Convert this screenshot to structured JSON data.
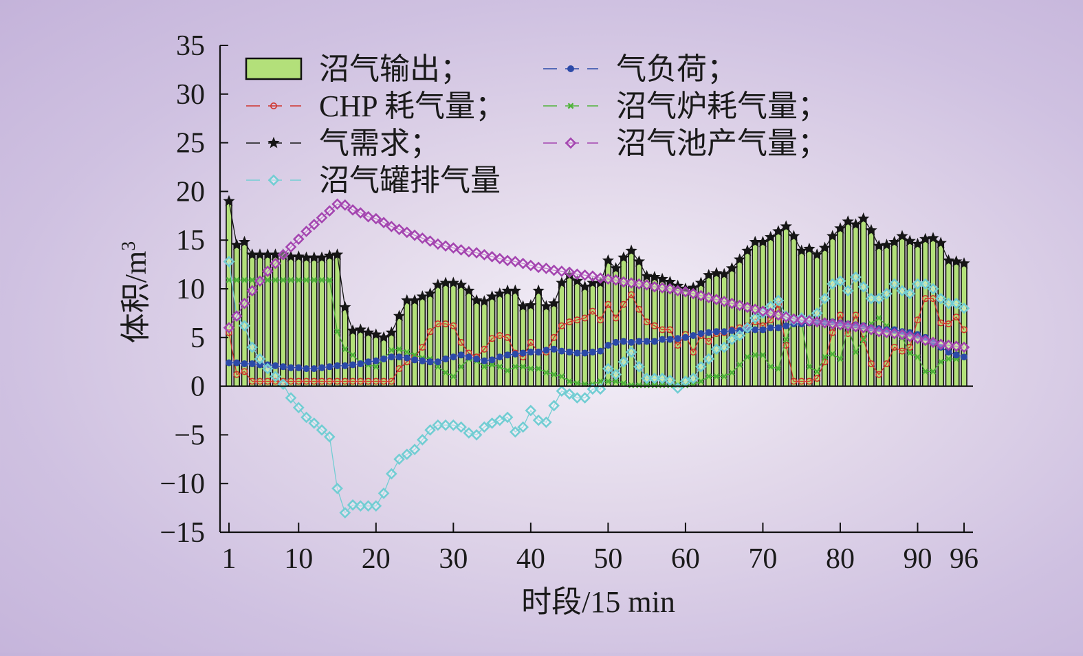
{
  "chart_data": {
    "type": "bar",
    "xlabel": "时段/15 min",
    "ylabel": "体积/m",
    "ylabel_sup": "3",
    "ylim": [
      -15,
      35
    ],
    "yticks": [
      -15,
      -10,
      -5,
      0,
      5,
      10,
      15,
      20,
      25,
      30,
      35
    ],
    "xlim": [
      1,
      96
    ],
    "xticks": [
      1,
      10,
      20,
      30,
      40,
      50,
      60,
      70,
      80,
      90,
      96
    ],
    "grid": false,
    "legend_position": "top-left, two columns",
    "x": [
      1,
      2,
      3,
      4,
      5,
      6,
      7,
      8,
      9,
      10,
      11,
      12,
      13,
      14,
      15,
      16,
      17,
      18,
      19,
      20,
      21,
      22,
      23,
      24,
      25,
      26,
      27,
      28,
      29,
      30,
      31,
      32,
      33,
      34,
      35,
      36,
      37,
      38,
      39,
      40,
      41,
      42,
      43,
      44,
      45,
      46,
      47,
      48,
      49,
      50,
      51,
      52,
      53,
      54,
      55,
      56,
      57,
      58,
      59,
      60,
      61,
      62,
      63,
      64,
      65,
      66,
      67,
      68,
      69,
      70,
      71,
      72,
      73,
      74,
      75,
      76,
      77,
      78,
      79,
      80,
      81,
      82,
      83,
      84,
      85,
      86,
      87,
      88,
      89,
      90,
      91,
      92,
      93,
      94,
      95,
      96
    ],
    "bar_series": {
      "name": "沼气输出；",
      "color": "#b3e07a",
      "values": [
        19,
        14.5,
        14.8,
        13.5,
        13.5,
        13.5,
        13.5,
        13.5,
        13.3,
        13.3,
        13.2,
        13.2,
        13.2,
        13.4,
        13.5,
        8.1,
        5.7,
        5.8,
        5.5,
        5.3,
        5,
        5.5,
        7.2,
        8.8,
        8.8,
        9.2,
        9.5,
        10.4,
        10.6,
        10.6,
        10.4,
        9.8,
        8.8,
        8.7,
        9.2,
        9.5,
        9.8,
        9.8,
        8.2,
        8.3,
        9.8,
        8.2,
        8.5,
        10.6,
        11.4,
        10.8,
        10.2,
        10.6,
        10.6,
        12.9,
        12.1,
        13.2,
        13.9,
        12.8,
        11.3,
        11.2,
        11.0,
        10.7,
        10.3,
        10.0,
        10.1,
        10.6,
        11.4,
        11.6,
        11.5,
        12.1,
        13.0,
        13.9,
        14.8,
        14.8,
        15.3,
        15.9,
        16.4,
        15.4,
        13.9,
        14.1,
        13.5,
        14.2,
        15.4,
        16.2,
        16.9,
        16.6,
        17.2,
        16.0,
        14.4,
        14.5,
        14.8,
        15.4,
        14.9,
        14.6,
        15.1,
        15.2,
        14.7,
        12.9,
        12.8,
        12.6
      ]
    },
    "series": [
      {
        "name": "CHP 耗气量；",
        "color": "#d0342c",
        "marker": "circle",
        "values": [
          5.5,
          1.2,
          1.5,
          0.5,
          0.5,
          0.5,
          0.5,
          0.5,
          0.5,
          0.5,
          0.5,
          0.5,
          0.5,
          0.5,
          0.5,
          0.5,
          0.5,
          0.5,
          0.5,
          0.5,
          0.5,
          0.5,
          1.8,
          2.5,
          3.0,
          4.0,
          5.6,
          6.4,
          6.4,
          6.2,
          4.5,
          3.4,
          3.0,
          3.8,
          4.9,
          5.2,
          5.0,
          3.4,
          3.0,
          4.5,
          3.5,
          3.5,
          5.0,
          6.2,
          6.6,
          6.8,
          7.0,
          7.7,
          6.8,
          8.4,
          7.0,
          8.4,
          9.4,
          7.9,
          6.6,
          6.2,
          5.8,
          5.8,
          4.2,
          5.3,
          3.5,
          5.2,
          4.6,
          5.4,
          5.5,
          5.8,
          6.0,
          6.2,
          6.6,
          6.2,
          6.8,
          8.4,
          4.2,
          0.5,
          0.5,
          0.5,
          0.8,
          2.5,
          5.5,
          7.3,
          5.4,
          7.3,
          4.8,
          2.3,
          1.2,
          2.3,
          4.0,
          3.6,
          4.0,
          6.8,
          9.0,
          9.0,
          6.5,
          6.4,
          7.1,
          5.8
        ]
      },
      {
        "name": "气需求；",
        "color": "#151515",
        "marker": "star",
        "values": [
          19,
          14.5,
          14.8,
          13.5,
          13.5,
          13.5,
          13.5,
          13.5,
          13.3,
          13.3,
          13.2,
          13.2,
          13.2,
          13.4,
          13.5,
          8.1,
          5.7,
          5.8,
          5.5,
          5.3,
          5,
          5.5,
          7.2,
          8.8,
          8.8,
          9.2,
          9.5,
          10.4,
          10.6,
          10.6,
          10.4,
          9.8,
          8.8,
          8.7,
          9.2,
          9.5,
          9.8,
          9.8,
          8.2,
          8.3,
          9.8,
          8.2,
          8.5,
          10.6,
          11.4,
          10.8,
          10.2,
          10.6,
          10.6,
          12.9,
          12.1,
          13.2,
          13.9,
          12.8,
          11.3,
          11.2,
          11.0,
          10.7,
          10.3,
          10.0,
          10.1,
          10.6,
          11.4,
          11.6,
          11.5,
          12.1,
          13.0,
          13.9,
          14.8,
          14.8,
          15.3,
          15.9,
          16.4,
          15.4,
          13.9,
          14.1,
          13.5,
          14.2,
          15.4,
          16.2,
          16.9,
          16.6,
          17.2,
          16.0,
          14.4,
          14.5,
          14.8,
          15.4,
          14.9,
          14.6,
          15.1,
          15.2,
          14.7,
          12.9,
          12.8,
          12.6
        ]
      },
      {
        "name": "沼气罐排气量",
        "color": "#72cdd3",
        "marker": "diamond",
        "values": [
          12.8,
          7.2,
          6.2,
          4.0,
          2.8,
          1.8,
          1.0,
          0.2,
          -1.2,
          -2.2,
          -3.2,
          -3.8,
          -4.5,
          -5.2,
          -10.5,
          -13.0,
          -12.2,
          -12.3,
          -12.3,
          -12.3,
          -11.0,
          -9.0,
          -7.5,
          -7.0,
          -6.5,
          -5.5,
          -4.5,
          -4.0,
          -4.0,
          -4.0,
          -4.2,
          -4.8,
          -5.0,
          -4.2,
          -3.8,
          -3.5,
          -3.2,
          -4.7,
          -4.2,
          -2.5,
          -3.5,
          -3.7,
          -2.0,
          -0.5,
          -0.8,
          -1.2,
          -1.2,
          -0.3,
          -0.3,
          1.8,
          1.2,
          2.5,
          3.5,
          2.0,
          0.8,
          0.8,
          0.8,
          0.6,
          -0.2,
          0.5,
          0.8,
          2.0,
          2.8,
          3.8,
          4.0,
          4.8,
          5.2,
          6.0,
          7.0,
          7.5,
          8.2,
          8.8,
          7.2,
          6.8,
          7.0,
          6.8,
          7.5,
          9.0,
          10.5,
          10.8,
          9.8,
          11.2,
          10.2,
          9.0,
          9.0,
          9.5,
          10.5,
          9.8,
          9.5,
          10.5,
          10.5,
          10.0,
          9.0,
          8.5,
          8.5,
          8.0
        ]
      },
      {
        "name": "气负荷；",
        "color": "#2c4aa8",
        "marker": "dot",
        "values": [
          2.4,
          2.4,
          2.3,
          2.3,
          2.2,
          2.2,
          2.1,
          2.0,
          1.9,
          1.9,
          1.8,
          1.8,
          1.9,
          2.0,
          2.1,
          2.1,
          2.2,
          2.3,
          2.5,
          2.6,
          2.8,
          3.0,
          3.0,
          2.9,
          2.7,
          2.6,
          2.5,
          2.5,
          2.8,
          3.0,
          3.2,
          3.0,
          2.8,
          2.6,
          2.7,
          3.0,
          3.2,
          3.3,
          3.4,
          3.5,
          3.5,
          3.7,
          3.8,
          3.6,
          3.5,
          3.4,
          3.4,
          3.5,
          3.6,
          4.2,
          4.5,
          4.6,
          4.5,
          4.6,
          4.6,
          4.6,
          4.8,
          4.8,
          4.9,
          5.0,
          5.2,
          5.4,
          5.5,
          5.6,
          5.6,
          5.7,
          5.7,
          5.8,
          5.8,
          5.8,
          6.0,
          6.0,
          6.2,
          6.4,
          6.4,
          6.5,
          6.5,
          6.6,
          6.6,
          6.5,
          6.4,
          6.3,
          6.2,
          6.0,
          5.9,
          5.8,
          5.8,
          5.6,
          5.5,
          5.3,
          5.0,
          4.5,
          4.0,
          3.5,
          3.2,
          3.0
        ]
      },
      {
        "name": "沼气炉耗气量；",
        "color": "#4fb33a",
        "marker": "cross",
        "values": [
          10.9,
          10.9,
          10.9,
          10.9,
          10.9,
          10.9,
          10.9,
          10.9,
          10.9,
          10.9,
          10.9,
          10.9,
          10.9,
          10.9,
          5.6,
          3.8,
          3.2,
          2.4,
          2.2,
          2.0,
          2.8,
          3.7,
          3.8,
          3.5,
          3.2,
          2.9,
          2.8,
          2.0,
          1.4,
          1.0,
          2.0,
          2.8,
          2.6,
          2.0,
          2.2,
          2.0,
          1.6,
          2.0,
          2.0,
          1.8,
          1.8,
          1.4,
          1.2,
          1.0,
          0.5,
          0.3,
          0.2,
          0.2,
          0.5,
          0.5,
          0.5,
          0.3,
          0.1,
          0.1,
          0.1,
          0.1,
          0.1,
          0.1,
          0.1,
          0.1,
          0.2,
          0.5,
          1.0,
          1.0,
          1.0,
          1.4,
          2.2,
          3.0,
          3.2,
          3.2,
          2.0,
          1.8,
          4.8,
          7.0,
          6.5,
          2.0,
          1.5,
          3.0,
          3.3,
          2.8,
          6.2,
          3.5,
          4.8,
          6.4,
          7.0,
          6.2,
          5.6,
          5.0,
          3.4,
          3.0,
          1.5,
          1.5,
          2.5,
          2.8,
          2.8,
          3.0
        ]
      },
      {
        "name": "沼气池产气量；",
        "color": "#a445b0",
        "marker": "diamond",
        "values": [
          6.0,
          7.2,
          8.5,
          9.8,
          10.8,
          11.8,
          12.6,
          13.5,
          14.3,
          15.1,
          15.9,
          16.6,
          17.3,
          18.0,
          18.7,
          18.6,
          18.1,
          17.8,
          17.4,
          17.2,
          16.8,
          16.4,
          16.1,
          15.8,
          15.5,
          15.2,
          14.9,
          14.6,
          14.4,
          14.2,
          14.0,
          13.8,
          13.7,
          13.5,
          13.3,
          13.1,
          12.9,
          12.8,
          12.6,
          12.4,
          12.2,
          12.1,
          11.9,
          11.8,
          11.7,
          11.5,
          11.4,
          11.3,
          11.1,
          11.0,
          10.9,
          10.7,
          10.6,
          10.5,
          10.4,
          10.2,
          10.1,
          10.0,
          9.8,
          9.7,
          9.5,
          9.3,
          9.1,
          8.9,
          8.7,
          8.5,
          8.3,
          8.1,
          7.9,
          7.7,
          7.5,
          7.3,
          7.1,
          6.9,
          6.8,
          6.7,
          6.6,
          6.5,
          6.4,
          6.3,
          6.2,
          6.1,
          6.0,
          5.8,
          5.6,
          5.5,
          5.4,
          5.3,
          5.1,
          4.9,
          4.7,
          4.5,
          4.3,
          4.2,
          4.1,
          4.0
        ]
      }
    ],
    "legend_order": [
      "bar",
      "气负荷；",
      "CHP 耗气量；",
      "沼气炉耗气量；",
      "气需求；",
      "沼气池产气量；",
      "沼气罐排气量"
    ]
  }
}
